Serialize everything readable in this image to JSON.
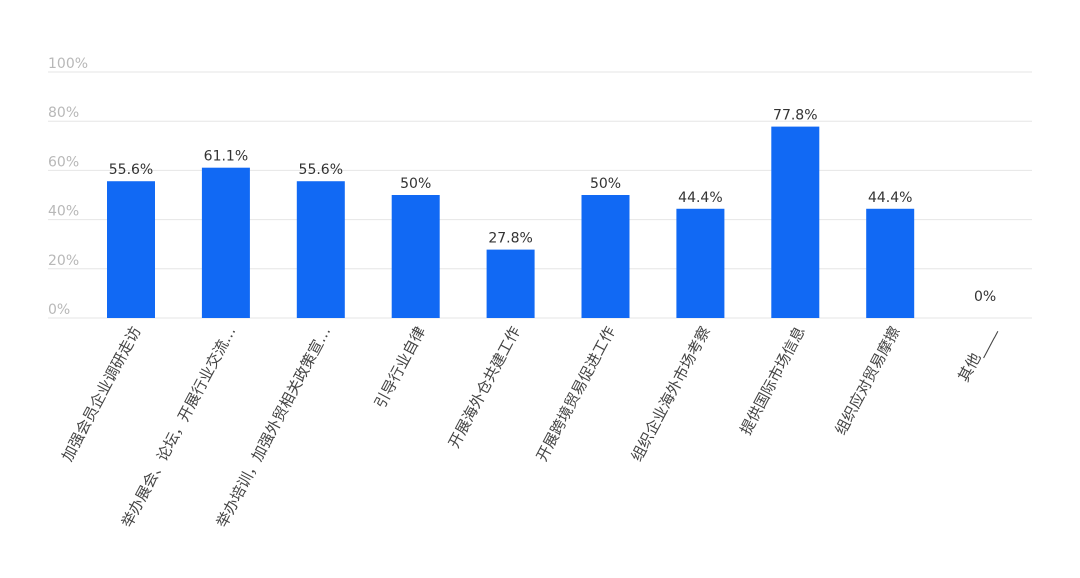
{
  "chart_data": {
    "type": "bar",
    "categories": [
      "加强会员企业调研走访",
      "举办展会、论坛，开展行业交流…",
      "举办培训，加强外贸相关政策宣…",
      "引导行业自律",
      "开展海外仓共建工作",
      "开展跨境贸易促进工作",
      "组织企业海外市场考察",
      "提供国际市场信息",
      "组织应对贸易摩擦",
      "其他____"
    ],
    "values": [
      55.6,
      61.1,
      55.6,
      50,
      27.8,
      50,
      44.4,
      77.8,
      44.4,
      0
    ],
    "data_labels": [
      "55.6%",
      "61.1%",
      "55.6%",
      "50%",
      "27.8%",
      "50%",
      "44.4%",
      "77.8%",
      "44.4%",
      "0%"
    ],
    "y_ticks": [
      "0%",
      "20%",
      "40%",
      "60%",
      "80%",
      "100%"
    ],
    "ylim": [
      0,
      100
    ],
    "grid": true,
    "bar_color": "#1169f4",
    "grid_color": "#e6e6e6"
  }
}
